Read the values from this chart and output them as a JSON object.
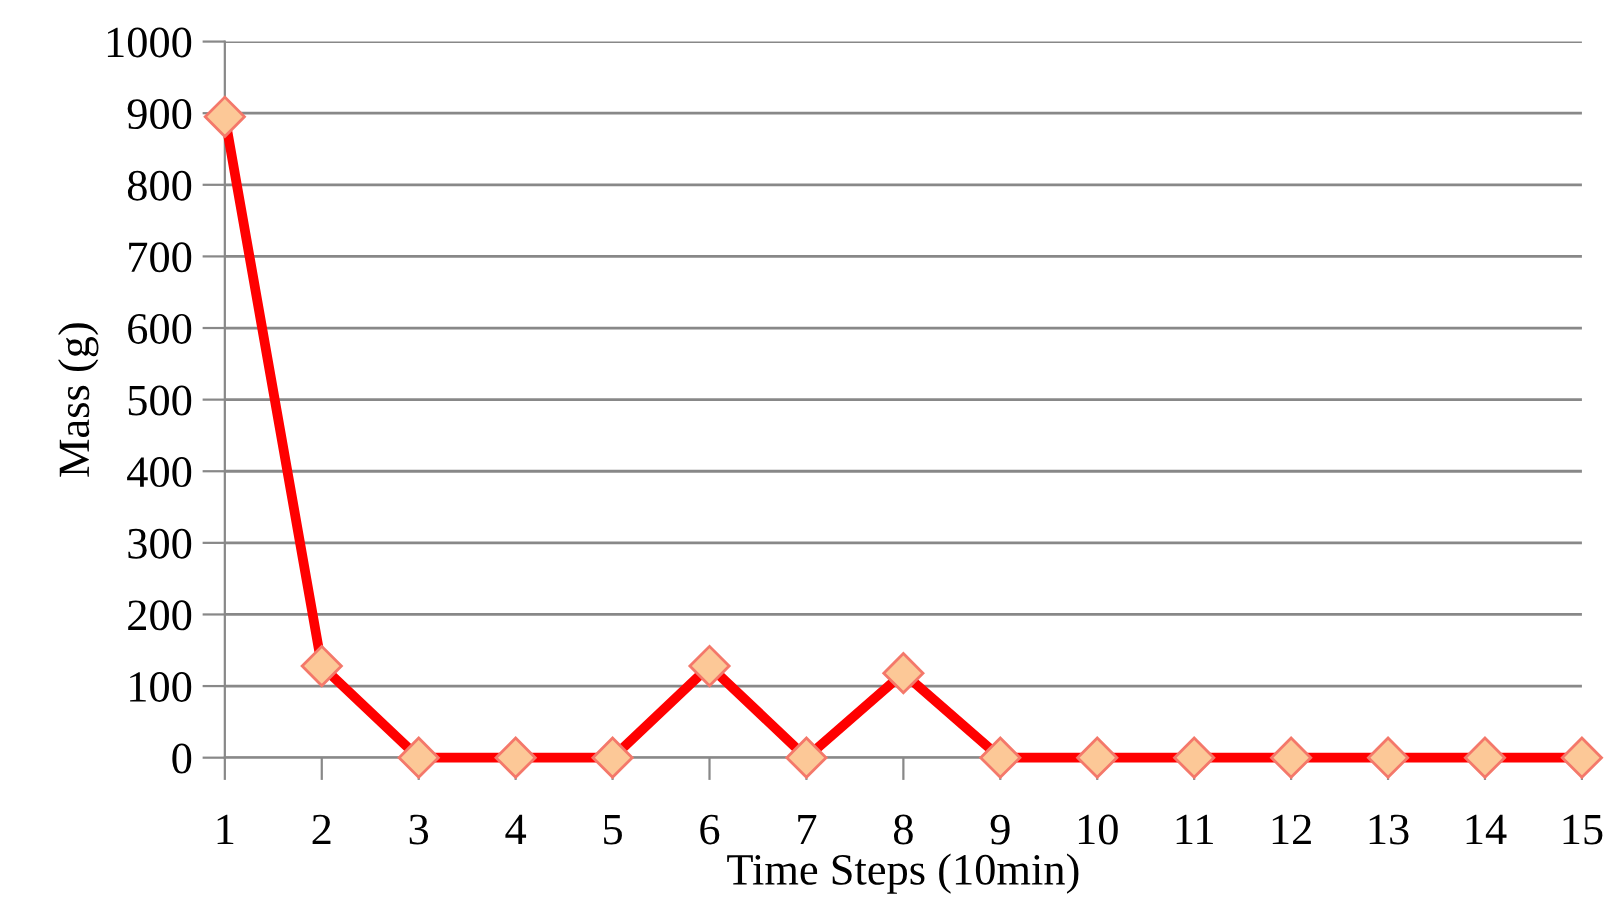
{
  "chart_data": {
    "type": "line",
    "xlabel": "Time Steps (10min)",
    "ylabel": "Mass (g)",
    "categories": [
      "1",
      "2",
      "3",
      "4",
      "5",
      "6",
      "7",
      "8",
      "9",
      "10",
      "11",
      "12",
      "13",
      "14",
      "15"
    ],
    "series": [
      {
        "color": "#ff0000",
        "values": [
          895,
          128,
          0,
          0,
          0,
          128,
          0,
          118,
          0,
          0,
          0,
          0,
          0,
          0,
          0
        ]
      }
    ],
    "marker": "diamond",
    "line_style": "solid",
    "ylim": [
      0,
      1000
    ],
    "yticks": [
      0,
      100,
      200,
      300,
      400,
      500,
      600,
      700,
      800,
      900,
      1000
    ],
    "grid": "y"
  }
}
